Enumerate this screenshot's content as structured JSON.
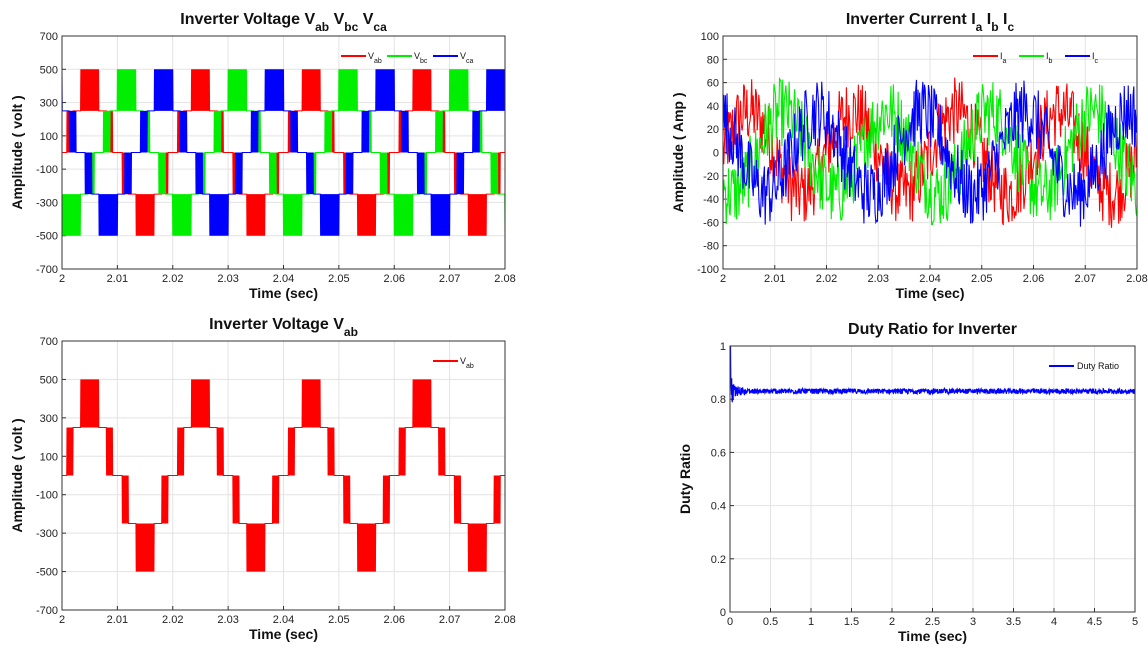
{
  "chart_data": [
    {
      "id": "vabc",
      "type": "line",
      "title": {
        "base": "Inverter Voltage ",
        "parts": [
          [
            "V",
            "ab"
          ],
          [
            "V",
            "bc"
          ],
          [
            "V",
            "ca"
          ]
        ]
      },
      "xlabel": "Time (sec)",
      "ylabel": "Amplitude ( volt )",
      "xlim": [
        2,
        2.08
      ],
      "ylim": [
        -700,
        700
      ],
      "xticks": [
        "2",
        "2.01",
        "2.02",
        "2.03",
        "2.04",
        "2.05",
        "2.06",
        "2.07",
        "2.08"
      ],
      "yticks": [
        "-700",
        "-500",
        "-300",
        "-100",
        "100",
        "300",
        "500",
        "700"
      ],
      "grid": true,
      "legend_position": "top-right",
      "fundamental_hz": 50,
      "series": [
        {
          "name": "V",
          "sub": "ab",
          "color": "#ff0000",
          "waveform": "multilevel-pwm",
          "levels": [
            -500,
            -250,
            0,
            250,
            500
          ],
          "phase_deg": 0
        },
        {
          "name": "V",
          "sub": "bc",
          "color": "#00ee00",
          "waveform": "multilevel-pwm",
          "levels": [
            -500,
            -250,
            0,
            250,
            500
          ],
          "phase_deg": -120
        },
        {
          "name": "V",
          "sub": "ca",
          "color": "#0000ff",
          "waveform": "multilevel-pwm",
          "levels": [
            -500,
            -250,
            0,
            250,
            500
          ],
          "phase_deg": 120
        }
      ]
    },
    {
      "id": "iabc",
      "type": "line",
      "title": {
        "base": "Inverter Current ",
        "parts": [
          [
            "I",
            "a"
          ],
          [
            "I",
            "b"
          ],
          [
            "I",
            "c"
          ]
        ]
      },
      "xlabel": "Time (sec)",
      "ylabel": "Amplitude ( Amp )",
      "xlim": [
        2,
        2.08
      ],
      "ylim": [
        -100,
        100
      ],
      "xticks": [
        "2",
        "2.01",
        "2.02",
        "2.03",
        "2.04",
        "2.05",
        "2.06",
        "2.07",
        "2.08"
      ],
      "yticks": [
        "-100",
        "-80",
        "-60",
        "-40",
        "-20",
        "0",
        "20",
        "40",
        "60",
        "80",
        "100"
      ],
      "grid": true,
      "legend_position": "top-right",
      "fundamental_hz": 50,
      "series": [
        {
          "name": "I",
          "sub": "a",
          "color": "#ff0000",
          "waveform": "noisy-sine",
          "amplitude": 35,
          "phase_deg": 0
        },
        {
          "name": "I",
          "sub": "b",
          "color": "#00ee00",
          "waveform": "noisy-sine",
          "amplitude": 35,
          "phase_deg": -120
        },
        {
          "name": "I",
          "sub": "c",
          "color": "#0000ff",
          "waveform": "noisy-sine",
          "amplitude": 35,
          "phase_deg": 120
        }
      ]
    },
    {
      "id": "vab",
      "type": "line",
      "title": {
        "base": "Inverter Voltage ",
        "parts": [
          [
            "V",
            "ab"
          ]
        ]
      },
      "xlabel": "Time (sec)",
      "ylabel": "Amplitude ( volt )",
      "xlim": [
        2,
        2.08
      ],
      "ylim": [
        -700,
        700
      ],
      "xticks": [
        "2",
        "2.01",
        "2.02",
        "2.03",
        "2.04",
        "2.05",
        "2.06",
        "2.07",
        "2.08"
      ],
      "yticks": [
        "-700",
        "-500",
        "-300",
        "-100",
        "100",
        "300",
        "500",
        "700"
      ],
      "grid": true,
      "legend_position": "top-right",
      "fundamental_hz": 50,
      "series": [
        {
          "name": "V",
          "sub": "ab",
          "color": "#ff0000",
          "waveform": "multilevel-pwm",
          "levels": [
            -500,
            -250,
            0,
            250,
            500
          ],
          "phase_deg": 0
        }
      ]
    },
    {
      "id": "duty",
      "type": "line",
      "title": {
        "base": "Duty Ratio for Inverter",
        "parts": []
      },
      "xlabel": "Time (sec)",
      "ylabel": "Duty Ratio",
      "xlim": [
        0,
        5
      ],
      "ylim": [
        0,
        1
      ],
      "xticks": [
        "0",
        "0.5",
        "1",
        "1.5",
        "2",
        "2.5",
        "3",
        "3.5",
        "4",
        "4.5",
        "5"
      ],
      "yticks": [
        "0",
        "0.2",
        "0.4",
        "0.6",
        "0.8",
        "1"
      ],
      "grid": true,
      "legend_position": "top-right",
      "series": [
        {
          "name": "Duty Ratio",
          "sub": "",
          "color": "#0000ff",
          "waveform": "duty-settle",
          "initial": 1.0,
          "steady": 0.83,
          "ripple": 0.02
        }
      ]
    }
  ]
}
